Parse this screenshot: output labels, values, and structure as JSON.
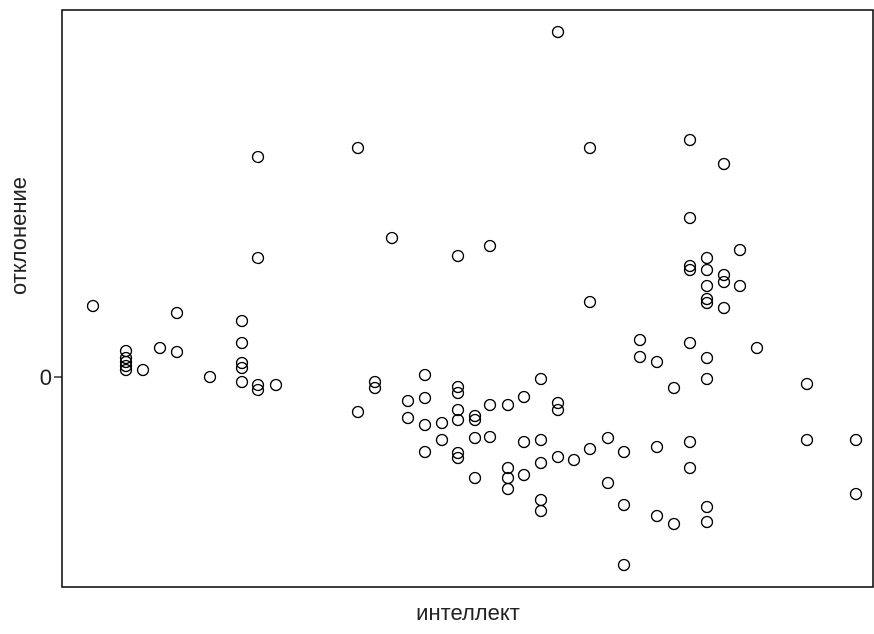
{
  "chart_data": {
    "type": "scatter",
    "x_label": "интеллект",
    "y_label": "отклонение",
    "xlim": [
      0,
      81.2
    ],
    "ylim": [
      -21,
      36.7
    ],
    "yticks": [
      0
    ],
    "color": "#000000",
    "x": [
      3.1,
      6.4,
      6.4,
      6.4,
      6.4,
      6.4,
      8.1,
      9.8,
      11.5,
      11.5,
      14.8,
      18,
      18,
      18,
      18,
      18,
      19.6,
      19.6,
      19.6,
      19.6,
      21.4,
      29.6,
      29.6,
      31.3,
      31.3,
      33,
      34.6,
      34.6,
      36.3,
      36.3,
      36.3,
      36.3,
      38,
      38,
      39.6,
      39.6,
      39.6,
      39.6,
      39.6,
      39.6,
      39.6,
      41.3,
      41.3,
      41.3,
      41.3,
      42.8,
      42.8,
      42.8,
      44.6,
      44.6,
      44.6,
      44.6,
      46.2,
      46.2,
      46.2,
      47.9,
      47.9,
      47.9,
      47.9,
      47.9,
      49.6,
      49.6,
      49.6,
      49.6,
      51.2,
      52.8,
      52.8,
      52.8,
      54.6,
      54.6,
      56.2,
      56.2,
      56.2,
      57.8,
      57.8,
      59.5,
      59.5,
      59.5,
      61.2,
      61.2,
      62.8,
      62.8,
      62.8,
      62.8,
      62.8,
      62.8,
      62.8,
      64.5,
      64.5,
      64.5,
      64.5,
      64.5,
      64.5,
      64.5,
      64.5,
      64.5,
      66.2,
      66.2,
      66.2,
      66.2,
      67.8,
      67.8,
      69.5,
      74.5,
      74.5,
      79.4,
      79.4
    ],
    "y": [
      7.1,
      2.6,
      1.9,
      1.5,
      1.1,
      0.7,
      0.7,
      2.9,
      6.4,
      2.5,
      0,
      5.6,
      3.4,
      1.4,
      0.9,
      -0.5,
      22,
      11.9,
      -0.8,
      -1.3,
      -0.8,
      22.9,
      -3.5,
      -0.5,
      -1.1,
      13.9,
      -2.4,
      -4.1,
      0.2,
      -2.1,
      -4.8,
      -7.5,
      -4.6,
      -6.3,
      12.1,
      -1,
      -1.6,
      -3.3,
      -4.3,
      -7.6,
      -8.1,
      -3.9,
      -4.3,
      -6.1,
      -10.1,
      13.1,
      -2.8,
      -6,
      -2.8,
      -9.1,
      -10.1,
      -11.2,
      -2,
      -6.5,
      -9.8,
      -0.2,
      -6.3,
      -8.6,
      -12.3,
      -13.4,
      34.5,
      -2.6,
      -3.3,
      -8,
      -8.3,
      22.9,
      7.5,
      -7.2,
      -6.1,
      -10.6,
      -7.5,
      -12.8,
      -18.8,
      3.7,
      2,
      1.5,
      -7,
      -13.9,
      -1.1,
      -14.7,
      23.7,
      15.9,
      11.1,
      10.7,
      3.4,
      -6.5,
      -9.1,
      11.9,
      10.7,
      9.1,
      7.8,
      7.4,
      1.9,
      -0.2,
      -13,
      -14.5,
      21.3,
      10.2,
      9.5,
      6.9,
      12.7,
      9.1,
      2.9,
      -0.7,
      -6.3,
      -6.3,
      -11.7
    ]
  }
}
